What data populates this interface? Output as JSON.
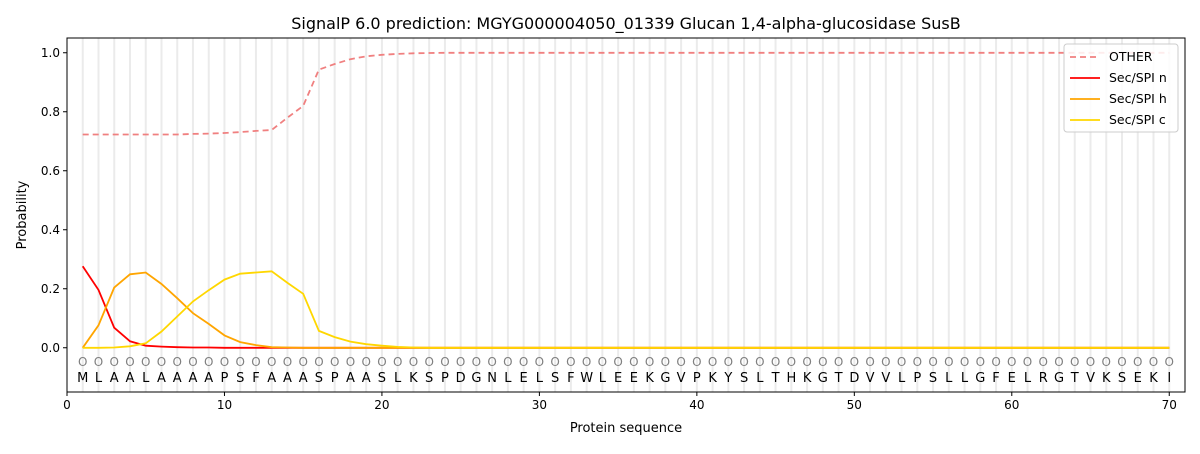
{
  "chart_data": {
    "type": "line",
    "title": "SignalP 6.0 prediction: MGYG000004050_01339 Glucan 1,4-alpha-glucosidase SusB",
    "xlabel": "Protein sequence",
    "ylabel": "Probability",
    "xlim": [
      0,
      71
    ],
    "ylim": [
      -0.15,
      1.05
    ],
    "xticks": [
      0,
      10,
      20,
      30,
      40,
      50,
      60,
      70
    ],
    "yticks": [
      0.0,
      0.2,
      0.4,
      0.6,
      0.8,
      1.0
    ],
    "grid": "vertical lines at each residue",
    "legend": "top-right",
    "sequence": [
      "M",
      "L",
      "A",
      "A",
      "L",
      "A",
      "A",
      "A",
      "A",
      "P",
      "S",
      "F",
      "A",
      "A",
      "A",
      "S",
      "P",
      "A",
      "A",
      "S",
      "L",
      "K",
      "S",
      "P",
      "D",
      "G",
      "N",
      "L",
      "E",
      "L",
      "S",
      "F",
      "W",
      "L",
      "E",
      "E",
      "K",
      "G",
      "V",
      "P",
      "K",
      "Y",
      "S",
      "L",
      "T",
      "H",
      "K",
      "G",
      "T",
      "D",
      "V",
      "V",
      "L",
      "P",
      "S",
      "L",
      "L",
      "G",
      "F",
      "E",
      "L",
      "R",
      "G",
      "T",
      "V",
      "K",
      "S",
      "E",
      "K",
      "I"
    ],
    "region_marker": "O",
    "series": [
      {
        "name": "OTHER",
        "color": "#f08080",
        "dash": true,
        "values": [
          0.723,
          0.723,
          0.723,
          0.723,
          0.723,
          0.723,
          0.723,
          0.725,
          0.726,
          0.728,
          0.731,
          0.735,
          0.738,
          0.78,
          0.82,
          0.943,
          0.962,
          0.978,
          0.988,
          0.993,
          0.996,
          0.998,
          0.999,
          1,
          1,
          1,
          1,
          1,
          1,
          1,
          1,
          1,
          1,
          1,
          1,
          1,
          1,
          1,
          1,
          1,
          1,
          1,
          1,
          1,
          1,
          1,
          1,
          1,
          1,
          1,
          1,
          1,
          1,
          1,
          1,
          1,
          1,
          1,
          1,
          1,
          1,
          1,
          1,
          1,
          1,
          1,
          1,
          1,
          1,
          1
        ]
      },
      {
        "name": "Sec/SPI n",
        "color": "#ff0000",
        "dash": false,
        "values": [
          0.276,
          0.196,
          0.068,
          0.022,
          0.007,
          0.004,
          0.002,
          0.001,
          0.001,
          0,
          0,
          0,
          0,
          0,
          0,
          0,
          0,
          0,
          0,
          0,
          0,
          0,
          0,
          0,
          0,
          0,
          0,
          0,
          0,
          0,
          0,
          0,
          0,
          0,
          0,
          0,
          0,
          0,
          0,
          0,
          0,
          0,
          0,
          0,
          0,
          0,
          0,
          0,
          0,
          0,
          0,
          0,
          0,
          0,
          0,
          0,
          0,
          0,
          0,
          0,
          0,
          0,
          0,
          0,
          0,
          0,
          0,
          0,
          0,
          0
        ]
      },
      {
        "name": "Sec/SPI h",
        "color": "#ffa500",
        "dash": false,
        "values": [
          0.0,
          0.076,
          0.204,
          0.249,
          0.255,
          0.216,
          0.168,
          0.117,
          0.081,
          0.042,
          0.019,
          0.009,
          0.002,
          0.001,
          0,
          0,
          0,
          0,
          0,
          0,
          0,
          0,
          0,
          0,
          0,
          0,
          0,
          0,
          0,
          0,
          0,
          0,
          0,
          0,
          0,
          0,
          0,
          0,
          0,
          0,
          0,
          0,
          0,
          0,
          0,
          0,
          0,
          0,
          0,
          0,
          0,
          0,
          0,
          0,
          0,
          0,
          0,
          0,
          0,
          0,
          0,
          0,
          0,
          0,
          0,
          0,
          0,
          0,
          0,
          0
        ]
      },
      {
        "name": "Sec/SPI c",
        "color": "#ffd700",
        "dash": false,
        "values": [
          0.0,
          0.0,
          0.001,
          0.005,
          0.015,
          0.055,
          0.106,
          0.157,
          0.195,
          0.231,
          0.251,
          0.255,
          0.259,
          0.22,
          0.183,
          0.057,
          0.036,
          0.021,
          0.012,
          0.007,
          0.003,
          0.001,
          0,
          0,
          0,
          0,
          0,
          0,
          0,
          0,
          0,
          0,
          0,
          0,
          0,
          0,
          0,
          0,
          0,
          0,
          0,
          0,
          0,
          0,
          0,
          0,
          0,
          0,
          0,
          0,
          0,
          0,
          0,
          0,
          0,
          0,
          0,
          0,
          0,
          0,
          0,
          0,
          0,
          0,
          0,
          0,
          0,
          0,
          0,
          0
        ]
      }
    ]
  }
}
